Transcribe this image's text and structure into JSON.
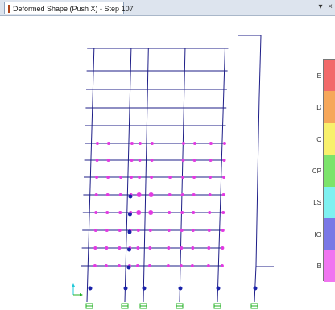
{
  "window": {
    "tab_title": "Deformed Shape (Push X) - Step 107",
    "dropdown_glyph": "▾",
    "close_glyph": "×",
    "icon": "frame-model-icon"
  },
  "legend": {
    "labels": [
      "E",
      "D",
      "C",
      "CP",
      "LS",
      "IO",
      "B"
    ],
    "colors": [
      "#f26a6a",
      "#f6a75a",
      "#f8f06c",
      "#7ce36b",
      "#7ef0f0",
      "#7a78e6",
      "#f075f0"
    ]
  },
  "colors": {
    "frame": "#1d1d87",
    "hinge_b_io": "#e23ae2",
    "hinge_io_ls": "#1a22aa",
    "support": "#20b020",
    "axis_x": "#20b020",
    "axis_y": "#20c8d8",
    "slab_edge": "#6060b0"
  }
}
